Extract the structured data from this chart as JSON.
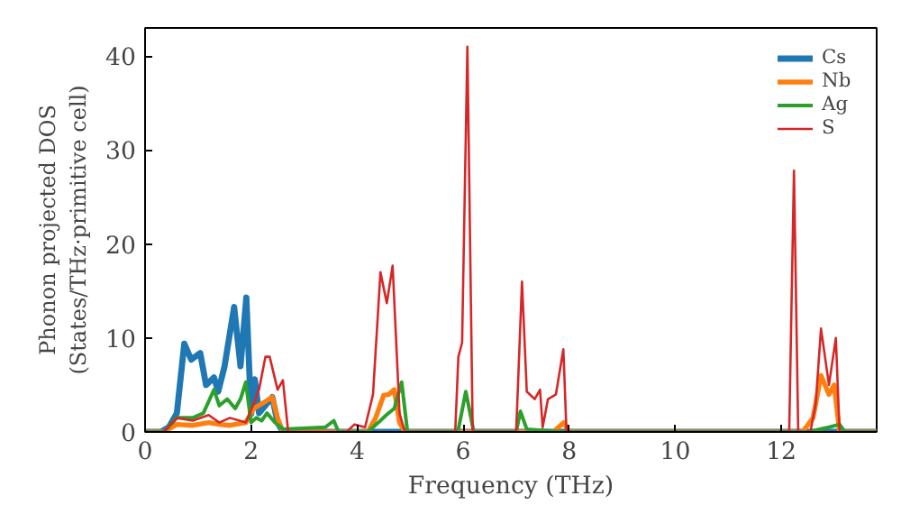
{
  "chart_data": {
    "type": "line",
    "xlabel": "Frequency (THz)",
    "ylabel": "Phonon projected DOS\n(States/THz·primitive cell)",
    "xlim": [
      0,
      13.8
    ],
    "ylim": [
      0,
      43
    ],
    "xticks": [
      0,
      2,
      4,
      6,
      8,
      10,
      12
    ],
    "yticks": [
      0,
      10,
      20,
      30,
      40
    ],
    "grid": false,
    "legend": "top right",
    "series": [
      {
        "name": "Cs",
        "color": "#1f77b4",
        "x": [
          0,
          0.3,
          0.45,
          0.6,
          0.74,
          0.87,
          1.04,
          1.15,
          1.3,
          1.38,
          1.5,
          1.68,
          1.8,
          1.91,
          2.0,
          2.07,
          2.15,
          2.4,
          2.5,
          2.6,
          13.8
        ],
        "values": [
          0,
          0,
          0.5,
          2,
          9.4,
          7.7,
          8.4,
          5,
          5.8,
          4.3,
          7,
          13.3,
          7,
          14.3,
          1.9,
          5.6,
          2,
          3.7,
          1,
          0,
          0
        ]
      },
      {
        "name": "Nb",
        "color": "#ff7f0e",
        "x": [
          0,
          0.35,
          0.6,
          0.9,
          1.2,
          1.4,
          1.6,
          1.9,
          2.05,
          2.2,
          2.4,
          2.5,
          2.6,
          3.5,
          4.2,
          4.35,
          4.5,
          4.6,
          4.7,
          4.8,
          4.9,
          7.7,
          7.9,
          8.0,
          12.4,
          12.6,
          12.75,
          12.9,
          13.0,
          13.1,
          13.8
        ],
        "values": [
          0,
          0,
          0.8,
          0.7,
          1,
          0.8,
          0.7,
          1,
          2.5,
          3,
          3.7,
          1.5,
          0,
          0,
          0,
          1.5,
          3.9,
          4,
          4.5,
          1,
          0,
          0,
          1,
          0,
          0,
          1.5,
          6,
          4,
          5,
          0,
          0
        ]
      },
      {
        "name": "Ag",
        "color": "#2ca02c",
        "x": [
          0,
          0.35,
          0.6,
          0.9,
          1.1,
          1.3,
          1.4,
          1.55,
          1.7,
          1.8,
          1.9,
          2.0,
          2.1,
          2.2,
          2.3,
          2.45,
          2.6,
          3.4,
          3.56,
          3.65,
          4.2,
          4.4,
          4.55,
          4.7,
          4.84,
          4.95,
          5.9,
          6.05,
          6.2,
          7.0,
          7.08,
          7.2,
          7.9,
          12.5,
          12.9,
          13.1,
          13.2,
          13.8
        ],
        "values": [
          0,
          0,
          1.5,
          1.5,
          2,
          4.5,
          2.8,
          3.5,
          2.5,
          3.5,
          5.3,
          1,
          1.5,
          1.2,
          2,
          1,
          0.3,
          0.5,
          1.2,
          0,
          0,
          1,
          1.8,
          2.5,
          5.3,
          0,
          0,
          4.3,
          0,
          0,
          2.2,
          0.3,
          0,
          0,
          0.5,
          0.8,
          0,
          0
        ]
      },
      {
        "name": "S",
        "color": "#d62728",
        "x": [
          0,
          0.35,
          0.6,
          0.9,
          1.2,
          1.4,
          1.6,
          1.9,
          2.05,
          2.15,
          2.27,
          2.35,
          2.5,
          2.6,
          2.7,
          3.8,
          3.95,
          4.15,
          4.3,
          4.44,
          4.56,
          4.67,
          4.8,
          4.9,
          5.85,
          5.91,
          5.98,
          6.08,
          6.18,
          7.0,
          7.11,
          7.2,
          7.35,
          7.45,
          7.5,
          7.6,
          7.75,
          7.89,
          7.95,
          12.15,
          12.24,
          12.32,
          12.55,
          12.65,
          12.75,
          12.9,
          13.03,
          13.1,
          13.8
        ],
        "values": [
          0,
          0,
          1.5,
          1.2,
          1.8,
          1,
          1.5,
          1,
          3,
          4.5,
          8,
          8,
          4.5,
          5.5,
          0,
          0,
          0.8,
          0.5,
          4,
          17,
          13.7,
          17.7,
          2,
          0,
          0,
          8,
          9.5,
          41,
          0,
          0,
          16,
          4.3,
          3.5,
          4.5,
          0.5,
          3.5,
          4,
          8.8,
          0,
          0,
          27.8,
          0,
          0,
          3,
          11,
          5,
          10,
          0,
          0
        ]
      }
    ]
  }
}
